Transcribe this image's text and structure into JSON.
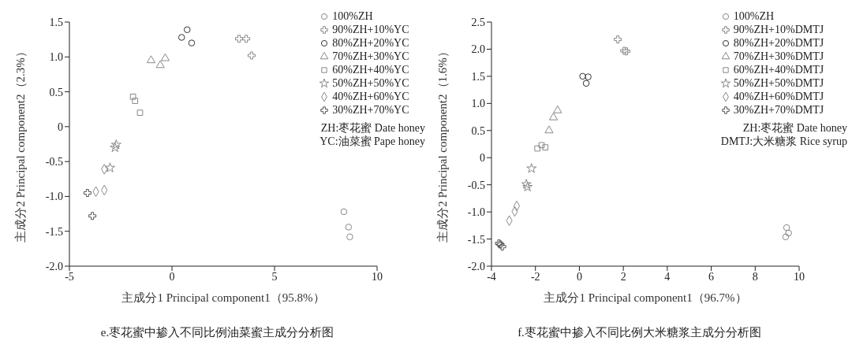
{
  "chart_data": [
    {
      "type": "scatter",
      "xlabel": "主成分1 Principal component1（95.8%）",
      "ylabel": "主成分2 Principal component2（2.3%）",
      "annotations": [
        "ZH:枣花蜜 Date honey",
        "YC:油菜蜜 Pape honey",
        "e.枣花蜜中掺入不同比例油菜蜜主成分分析图"
      ],
      "legend": "top right",
      "xlim": [
        -5,
        10
      ],
      "xticks": [
        -5,
        0,
        5,
        10
      ],
      "ylim": [
        -2,
        1.5
      ],
      "yticks": [
        {
          "value": -2,
          "label": "-2.0"
        },
        -1.5,
        {
          "value": -1,
          "label": "-1.0"
        },
        -0.5,
        0,
        0.5,
        {
          "value": 1,
          "label": "1.0"
        },
        1.5
      ],
      "series": [
        {
          "name": "100%ZH",
          "color": "#888888",
          "marker": "circle",
          "x": [
            8.38,
            8.61,
            8.67
          ],
          "values": [
            -1.22,
            -1.44,
            -1.58
          ]
        },
        {
          "name": "90%ZH+10%YC",
          "color": "#888888",
          "marker": "cross",
          "x": [
            3.27,
            3.62,
            3.88
          ],
          "values": [
            1.26,
            1.26,
            1.02
          ]
        },
        {
          "name": "80%ZH+20%YC",
          "color": "#333333",
          "marker": "circle",
          "x": [
            0.47,
            0.74,
            0.96
          ],
          "values": [
            1.28,
            1.39,
            1.2
          ]
        },
        {
          "name": "70%ZH+30%YC",
          "color": "#888888",
          "marker": "triangle",
          "x": [
            -1.02,
            -0.57,
            -0.33
          ],
          "values": [
            0.95,
            0.88,
            0.98
          ]
        },
        {
          "name": "60%ZH+40%YC",
          "color": "#888888",
          "marker": "square",
          "x": [
            -1.9,
            -1.8,
            -1.56
          ],
          "values": [
            0.43,
            0.37,
            0.2
          ]
        },
        {
          "name": "50%ZH+50%YC",
          "color": "#888888",
          "marker": "star",
          "x": [
            -2.72,
            -2.78,
            -3.02
          ],
          "values": [
            -0.26,
            -0.3,
            -0.59
          ]
        },
        {
          "name": "40%ZH+60%YC",
          "color": "#888888",
          "marker": "diamond",
          "x": [
            -3.3,
            -3.3,
            -3.71
          ],
          "values": [
            -0.61,
            -0.91,
            -0.93
          ]
        },
        {
          "name": "30%ZH+70%YC",
          "color": "#555555",
          "marker": "cross",
          "x": [
            -4.12,
            -3.88
          ],
          "values": [
            -0.95,
            -1.28
          ]
        }
      ]
    },
    {
      "type": "scatter",
      "xlabel": "主成分1 Principal component1（96.7%）",
      "ylabel": "主成分2 Principal component2（1.6%）",
      "annotations": [
        "ZH:枣花蜜 Date honey",
        "DMTJ:大米糖浆 Rice syrup",
        "f.枣花蜜中掺入不同比例大米糖浆主成分分析图"
      ],
      "legend": "top right",
      "xlim": [
        -4,
        10
      ],
      "xticks": [
        -4,
        -2,
        0,
        2,
        4,
        6,
        8,
        10
      ],
      "ylim": [
        -2,
        2.5
      ],
      "yticks": [
        {
          "value": -2,
          "label": "-2.0"
        },
        -1.5,
        {
          "value": -1,
          "label": "-1.0"
        },
        -0.5,
        0,
        0.5,
        {
          "value": 1,
          "label": "1.0"
        },
        1.5,
        {
          "value": 2,
          "label": "2.0"
        },
        2.5
      ],
      "series": [
        {
          "name": "100%ZH",
          "color": "#888888",
          "marker": "circle",
          "x": [
            9.43,
            9.52,
            9.39
          ],
          "values": [
            -1.29,
            -1.39,
            -1.46
          ]
        },
        {
          "name": "90%ZH+10%DMTJ",
          "color": "#888888",
          "marker": "cross",
          "x": [
            1.75,
            2.04,
            2.14
          ],
          "values": [
            2.18,
            1.97,
            1.96
          ]
        },
        {
          "name": "80%ZH+20%DMTJ",
          "color": "#333333",
          "marker": "circle",
          "x": [
            0.15,
            0.4,
            0.31
          ],
          "values": [
            1.5,
            1.49,
            1.37
          ]
        },
        {
          "name": "70%ZH+30%DMTJ",
          "color": "#888888",
          "marker": "triangle",
          "x": [
            -1.38,
            -1.18,
            -0.99
          ],
          "values": [
            0.5,
            0.74,
            0.87
          ]
        },
        {
          "name": "60%ZH+40%DMTJ",
          "color": "#888888",
          "marker": "square",
          "x": [
            -1.91,
            -1.72,
            -1.55
          ],
          "values": [
            0.17,
            0.23,
            0.19
          ]
        },
        {
          "name": "50%ZH+50%DMTJ",
          "color": "#888888",
          "marker": "star",
          "x": [
            -2.18,
            -2.41,
            -2.36
          ],
          "values": [
            -0.2,
            -0.49,
            -0.54
          ]
        },
        {
          "name": "40%ZH+60%DMTJ",
          "color": "#888888",
          "marker": "diamond",
          "x": [
            -3.19,
            -2.94,
            -2.85
          ],
          "values": [
            -1.16,
            -0.99,
            -0.89
          ]
        },
        {
          "name": "30%ZH+70%DMTJ",
          "color": "#555555",
          "marker": "cross",
          "x": [
            -3.66,
            -3.59,
            -3.51
          ],
          "values": [
            -1.58,
            -1.6,
            -1.64
          ]
        }
      ]
    }
  ]
}
